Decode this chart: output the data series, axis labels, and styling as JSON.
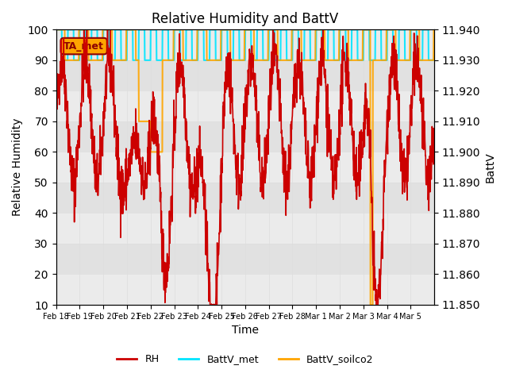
{
  "title": "Relative Humidity and BattV",
  "ylabel_left": "Relative Humidity",
  "ylabel_right": "BattV",
  "xlabel": "Time",
  "ylim_left": [
    10,
    100
  ],
  "ylim_right": [
    11.85,
    11.94
  ],
  "xtick_labels": [
    "Feb 18",
    "Feb 19",
    "Feb 20",
    "Feb 21",
    "Feb 22",
    "Feb 23",
    "Feb 24",
    "Feb 25",
    "Feb 26",
    "Feb 27",
    "Feb 28",
    "Mar 1",
    "Mar 2",
    "Mar 3",
    "Mar 4",
    "Mar 5"
  ],
  "yticks_left": [
    10,
    20,
    30,
    40,
    50,
    60,
    70,
    80,
    90,
    100
  ],
  "yticks_right": [
    11.85,
    11.86,
    11.87,
    11.88,
    11.89,
    11.9,
    11.91,
    11.92,
    11.93,
    11.94
  ],
  "rh_color": "#cc0000",
  "battv_met_color": "#00e5ff",
  "battv_soilco2_color": "#ffa500",
  "background_color": "#ffffff",
  "grid_color": "#dddddd",
  "annotation_text": "TA_met",
  "annotation_box_color": "#ffa500",
  "annotation_text_color": "#8b0000",
  "legend_entries": [
    "RH",
    "BattV_met",
    "BattV_soilco2"
  ]
}
